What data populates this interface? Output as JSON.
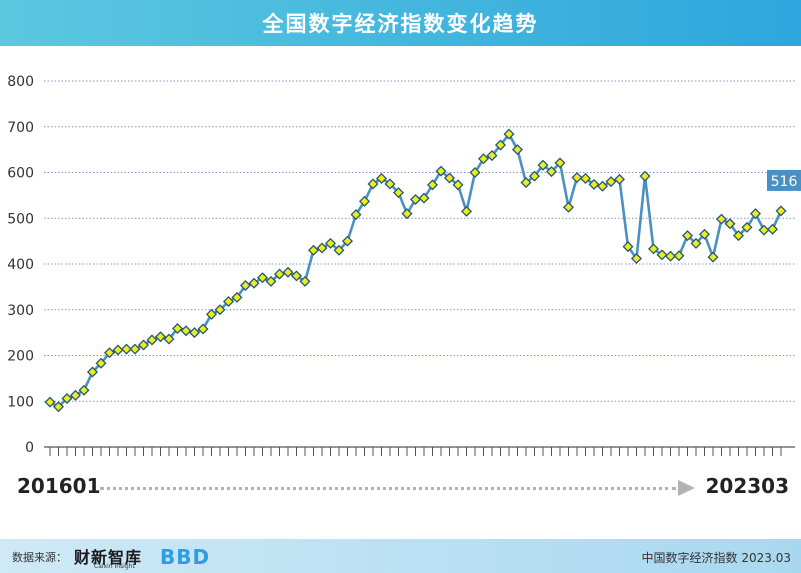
{
  "header": {
    "title": "全国数字经济指数变化趋势"
  },
  "range": {
    "start": "201601",
    "end": "202303"
  },
  "footer": {
    "source_label": "数据来源：",
    "brand": "财新智库",
    "brand_sub": "Caixin Insight",
    "brand2": "BBD",
    "note": "中国数字经济指数 2023.03"
  },
  "chart_data": {
    "type": "line",
    "title": "全国数字经济指数变化趋势",
    "xlabel": "",
    "ylabel": "",
    "ylim": [
      0,
      800
    ],
    "yticks": [
      0,
      100,
      200,
      300,
      400,
      500,
      600,
      700,
      800
    ],
    "grid": true,
    "x_start": "201601",
    "x_end": "202303",
    "last_label": "516",
    "colors": {
      "line": "#4a90c2",
      "marker_fill": "#f2ea1d",
      "marker_stroke": "#1f5a7a",
      "label_bg": "#4a90c2",
      "grid": "#8a93c4"
    },
    "values": [
      98,
      88,
      106,
      113,
      124,
      164,
      183,
      206,
      212,
      214,
      214,
      223,
      234,
      241,
      236,
      259,
      254,
      250,
      258,
      290,
      300,
      318,
      327,
      353,
      358,
      370,
      362,
      378,
      382,
      374,
      362,
      430,
      435,
      445,
      430,
      450,
      508,
      537,
      575,
      587,
      575,
      556,
      510,
      541,
      544,
      573,
      603,
      588,
      573,
      515,
      600,
      630,
      637,
      660,
      684,
      650,
      578,
      592,
      616,
      602,
      621,
      524,
      589,
      587,
      574,
      570,
      580,
      585,
      438,
      412,
      592,
      433,
      420,
      417,
      418,
      462,
      445,
      465,
      415,
      498,
      488,
      462,
      480,
      510,
      474,
      476,
      516
    ]
  }
}
